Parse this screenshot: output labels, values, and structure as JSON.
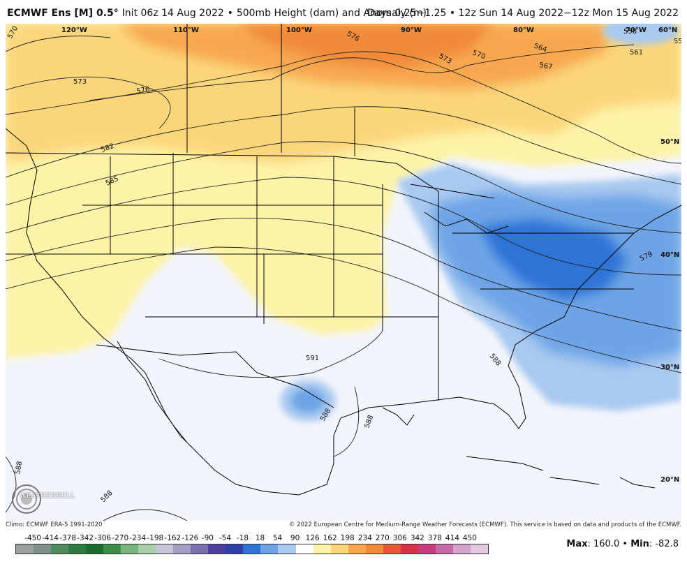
{
  "header": {
    "model": "ECMWF Ens [M] 0.5",
    "degree": "°",
    "init": "Init 06z 14 Aug 2022",
    "bullet1": "•",
    "product": "500mb Height (dam) and Anomaly (m)",
    "days": "Days 0.25−1.25",
    "bullet2": "•",
    "valid": "12z Sun 14 Aug 2022−12z Mon 15 Aug 2022"
  },
  "map": {
    "lon_labels": [
      "120°W",
      "110°W",
      "100°W",
      "90°W",
      "80°W",
      "70°W",
      "60°N"
    ],
    "lat_labels": [
      "50°N",
      "40°N",
      "30°N",
      "20°N"
    ],
    "contour_labels": [
      "570",
      "573",
      "576",
      "576",
      "573",
      "570",
      "564",
      "567",
      "561",
      "558",
      "55",
      "582",
      "585",
      "579",
      "588",
      "591",
      "588",
      "588",
      "588",
      "588"
    ],
    "colors": {
      "ocean_neutral": "#f3f5fc",
      "positive_light": "#fdf3a8",
      "positive_mid": "#fbd57a",
      "positive_strong": "#f7a84f",
      "positive_max": "#f08a3a",
      "negative_light": "#a9c9f0",
      "negative_mid": "#6ea4e6",
      "negative_strong": "#2f73d6"
    }
  },
  "footer": {
    "climo": "Climo: ECMWF ERA-5 1991-2020",
    "copyright": "© 2022 European Centre for Medium-Range Weather Forecasts (ECMWF). This service is based on data and products of the ECMWF."
  },
  "logo": {
    "text": "WEATHERBELL"
  },
  "scale": {
    "labels": [
      "-450",
      "-414",
      "-378",
      "-342",
      "-306",
      "-270",
      "-234",
      "-198",
      "-162",
      "-126",
      "-90",
      "-54",
      "-18",
      "18",
      "54",
      "90",
      "126",
      "162",
      "198",
      "234",
      "270",
      "306",
      "342",
      "378",
      "414",
      "450"
    ],
    "colors": [
      "#9aa09d",
      "#7d8f86",
      "#4f8a5f",
      "#2e7a40",
      "#1c6b31",
      "#3c8f4a",
      "#79b37f",
      "#a8cfa9",
      "#c5c7d6",
      "#a49fc2",
      "#7b6fb0",
      "#4c3f9f",
      "#2e3fa8",
      "#2f73d6",
      "#6ea4e6",
      "#a9c9f0",
      "#ffffff",
      "#fdf3a8",
      "#fbd57a",
      "#f7a84f",
      "#f08a3a",
      "#e6573a",
      "#d6304a",
      "#c93a7a",
      "#c56aa8",
      "#d2a3cb",
      "#e0c8df"
    ]
  },
  "stats": {
    "max_label": "Max",
    "max_value": "160.0",
    "bullet": "•",
    "min_label": "Min",
    "min_value": "-82.8"
  }
}
